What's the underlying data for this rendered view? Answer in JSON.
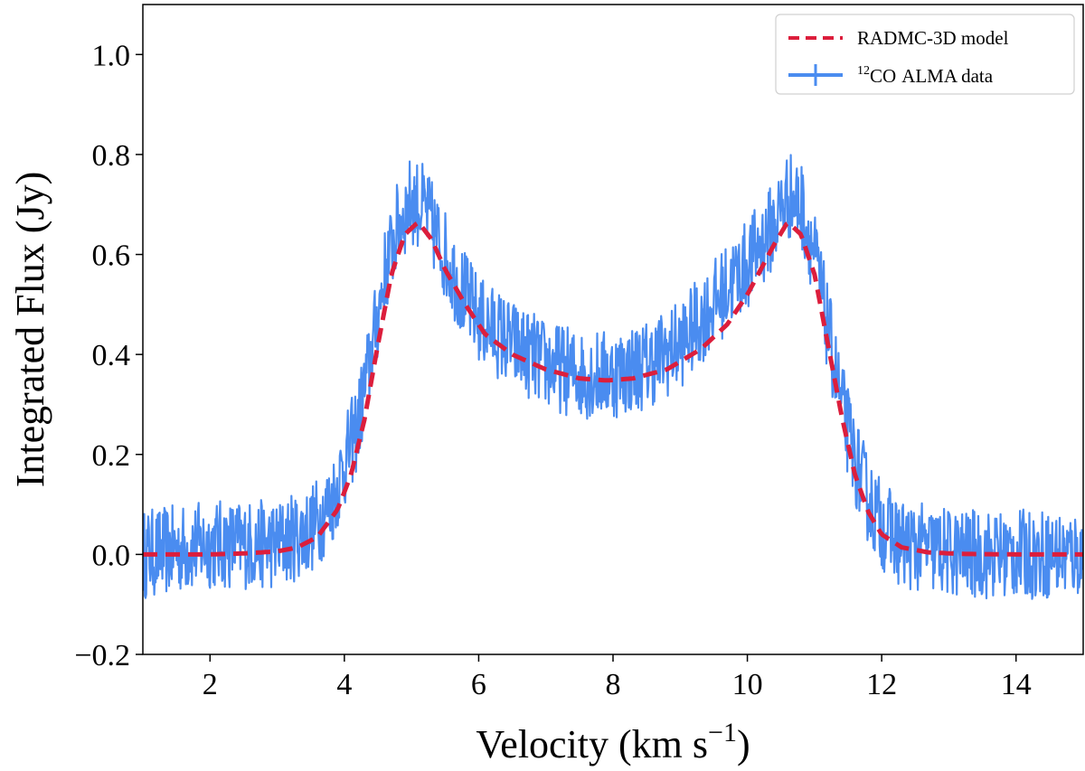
{
  "chart_data": {
    "type": "line",
    "title": "",
    "xlabel": "Velocity (km s",
    "xlabel_sup": "−1",
    "xlabel_close": ")",
    "ylabel": "Integrated Flux (Jy)",
    "xlim": [
      1.0,
      15.0
    ],
    "ylim": [
      -0.2,
      1.1
    ],
    "x_ticks": [
      2,
      4,
      6,
      8,
      10,
      12,
      14
    ],
    "x_tick_labels": [
      "2",
      "4",
      "6",
      "8",
      "10",
      "12",
      "14"
    ],
    "y_ticks": [
      -0.2,
      0.0,
      0.2,
      0.4,
      0.6,
      0.8,
      1.0
    ],
    "y_tick_labels": [
      "−0.2",
      "0.0",
      "0.2",
      "0.4",
      "0.6",
      "0.8",
      "1.0"
    ],
    "grid": false,
    "legend_position": "top-right",
    "series": [
      {
        "name": "RADMC-3D model",
        "style": "dashed",
        "color": "#dc1e3c",
        "x": [
          1.0,
          2.0,
          2.5,
          3.0,
          3.3,
          3.6,
          3.9,
          4.1,
          4.3,
          4.5,
          4.7,
          4.9,
          5.1,
          5.3,
          5.5,
          5.8,
          6.1,
          6.5,
          7.0,
          7.5,
          7.9,
          8.3,
          8.8,
          9.3,
          9.7,
          10.0,
          10.2,
          10.4,
          10.6,
          10.8,
          11.0,
          11.2,
          11.4,
          11.6,
          11.8,
          12.0,
          12.3,
          12.7,
          13.2,
          14.0,
          15.0
        ],
        "y": [
          0.0,
          0.0,
          0.002,
          0.006,
          0.014,
          0.035,
          0.09,
          0.16,
          0.27,
          0.42,
          0.56,
          0.64,
          0.665,
          0.63,
          0.57,
          0.5,
          0.44,
          0.4,
          0.37,
          0.352,
          0.348,
          0.352,
          0.37,
          0.41,
          0.46,
          0.52,
          0.57,
          0.62,
          0.665,
          0.64,
          0.56,
          0.42,
          0.28,
          0.16,
          0.085,
          0.04,
          0.014,
          0.004,
          0.001,
          0.0,
          0.0
        ]
      },
      {
        "name": "ALMA data",
        "name_sup": "12",
        "name_prefix": "CO",
        "style": "noisy-line-with-errorbars",
        "color": "#4a8cf0",
        "noise_amplitude": 0.09,
        "x": [
          1.0,
          2.0,
          3.0,
          3.5,
          3.8,
          4.0,
          4.2,
          4.4,
          4.6,
          4.8,
          5.0,
          5.2,
          5.4,
          5.7,
          6.0,
          6.5,
          7.0,
          7.5,
          8.0,
          8.5,
          9.0,
          9.5,
          9.8,
          10.0,
          10.2,
          10.4,
          10.6,
          10.8,
          11.0,
          11.2,
          11.4,
          11.6,
          11.8,
          12.0,
          12.3,
          12.7,
          13.2,
          14.0,
          15.0
        ],
        "y": [
          0.0,
          0.02,
          0.02,
          0.05,
          0.1,
          0.18,
          0.26,
          0.4,
          0.56,
          0.66,
          0.71,
          0.69,
          0.63,
          0.54,
          0.47,
          0.42,
          0.38,
          0.36,
          0.36,
          0.38,
          0.42,
          0.5,
          0.55,
          0.58,
          0.62,
          0.66,
          0.72,
          0.7,
          0.6,
          0.45,
          0.3,
          0.19,
          0.11,
          0.06,
          0.02,
          0.01,
          0.0,
          0.0,
          0.0
        ]
      }
    ]
  }
}
